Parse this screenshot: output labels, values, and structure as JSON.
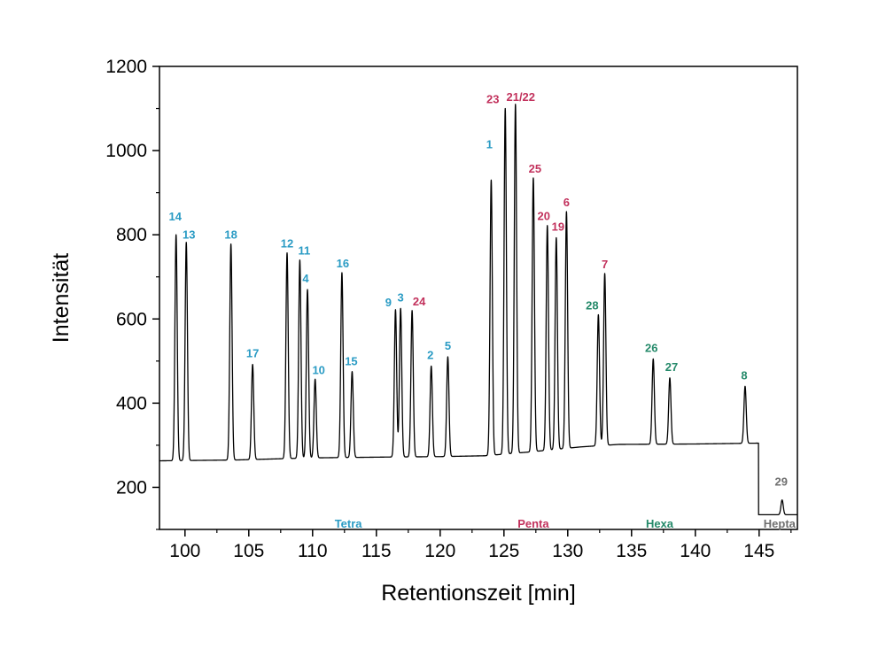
{
  "colors": {
    "tetra": "#2a9bc4",
    "penta": "#c2315c",
    "hexa": "#258a6a",
    "hepta": "#707070",
    "trace": "#000000"
  },
  "chart_data": {
    "type": "line",
    "title": "",
    "xlabel": "Retentionszeit [min]",
    "ylabel": "Intensität",
    "xlim": [
      98,
      148
    ],
    "ylim": [
      100,
      1200
    ],
    "xticks": [
      100,
      105,
      110,
      115,
      120,
      125,
      130,
      135,
      140,
      145
    ],
    "yticks": [
      200,
      400,
      600,
      800,
      1000,
      1200
    ],
    "grid": false,
    "peaks": [
      {
        "label": "14",
        "x": 99.3,
        "y": 800,
        "group": "tetra"
      },
      {
        "label": "13",
        "x": 100.1,
        "y": 782,
        "group": "tetra"
      },
      {
        "label": "18",
        "x": 103.6,
        "y": 778,
        "group": "tetra"
      },
      {
        "label": "17",
        "x": 105.3,
        "y": 492,
        "group": "tetra"
      },
      {
        "label": "12",
        "x": 108.0,
        "y": 757,
        "group": "tetra"
      },
      {
        "label": "11",
        "x": 109.0,
        "y": 740,
        "group": "tetra"
      },
      {
        "label": "4",
        "x": 109.6,
        "y": 670,
        "group": "tetra"
      },
      {
        "label": "10",
        "x": 110.2,
        "y": 457,
        "group": "tetra"
      },
      {
        "label": "16",
        "x": 112.3,
        "y": 710,
        "group": "tetra"
      },
      {
        "label": "15",
        "x": 113.1,
        "y": 475,
        "group": "tetra"
      },
      {
        "label": "9",
        "x": 116.5,
        "y": 622,
        "group": "tetra"
      },
      {
        "label": "3",
        "x": 116.9,
        "y": 625,
        "group": "tetra"
      },
      {
        "label": "24",
        "x": 117.8,
        "y": 620,
        "group": "penta"
      },
      {
        "label": "2",
        "x": 119.3,
        "y": 488,
        "group": "tetra"
      },
      {
        "label": "5",
        "x": 120.6,
        "y": 510,
        "group": "tetra"
      },
      {
        "label": "1",
        "x": 124.0,
        "y": 930,
        "group": "tetra"
      },
      {
        "label": "23",
        "x": 125.1,
        "y": 1100,
        "group": "penta"
      },
      {
        "label": "21/22",
        "x": 125.9,
        "y": 1110,
        "group": "penta"
      },
      {
        "label": "25",
        "x": 127.3,
        "y": 935,
        "group": "penta"
      },
      {
        "label": "20",
        "x": 128.4,
        "y": 822,
        "group": "penta"
      },
      {
        "label": "19",
        "x": 129.1,
        "y": 793,
        "group": "penta"
      },
      {
        "label": "6",
        "x": 129.9,
        "y": 855,
        "group": "penta"
      },
      {
        "label": "28",
        "x": 132.4,
        "y": 610,
        "group": "hexa"
      },
      {
        "label": "7",
        "x": 132.9,
        "y": 708,
        "group": "penta"
      },
      {
        "label": "26",
        "x": 136.7,
        "y": 505,
        "group": "hexa"
      },
      {
        "label": "27",
        "x": 138.0,
        "y": 460,
        "group": "hexa"
      },
      {
        "label": "8",
        "x": 143.9,
        "y": 440,
        "group": "hexa"
      },
      {
        "label": "29",
        "x": 146.8,
        "y": 170,
        "group": "hepta"
      }
    ],
    "regions": [
      {
        "label": "Tetra",
        "x": 112.8,
        "group": "tetra"
      },
      {
        "label": "Penta",
        "x": 127.3,
        "group": "penta"
      },
      {
        "label": "Hexa",
        "x": 137.2,
        "group": "hexa"
      },
      {
        "label": "Hepta",
        "x": 146.6,
        "group": "hepta"
      }
    ]
  }
}
